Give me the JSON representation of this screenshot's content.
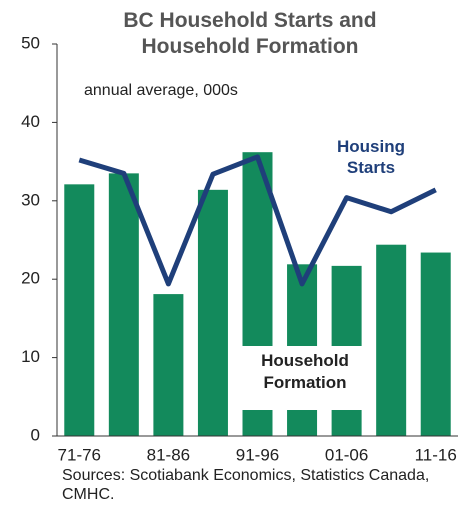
{
  "chart_data": {
    "type": "bar-line",
    "title": "BC Household Starts and Household Formation",
    "subtitle": "annual average, 000s",
    "categories": [
      "71-76",
      null,
      "81-86",
      null,
      "91-96",
      null,
      "01-06",
      null,
      "11-16"
    ],
    "series": [
      {
        "name": "Household Formation",
        "type": "bar",
        "color": "#138a5c",
        "values": [
          32.1,
          33.5,
          18.1,
          31.4,
          36.2,
          21.9,
          21.7,
          24.4,
          23.4
        ]
      },
      {
        "name": "Housing Starts",
        "type": "line",
        "color": "#1f3f7a",
        "values": [
          35.2,
          33.5,
          19.4,
          33.4,
          35.6,
          19.4,
          30.4,
          28.6,
          31.4
        ]
      }
    ],
    "ylim": [
      0,
      50
    ],
    "yticks": [
      0,
      10,
      20,
      30,
      40,
      50
    ],
    "source": "Sources: Scotiabank Economics, Statistics Canada, CMHC."
  }
}
